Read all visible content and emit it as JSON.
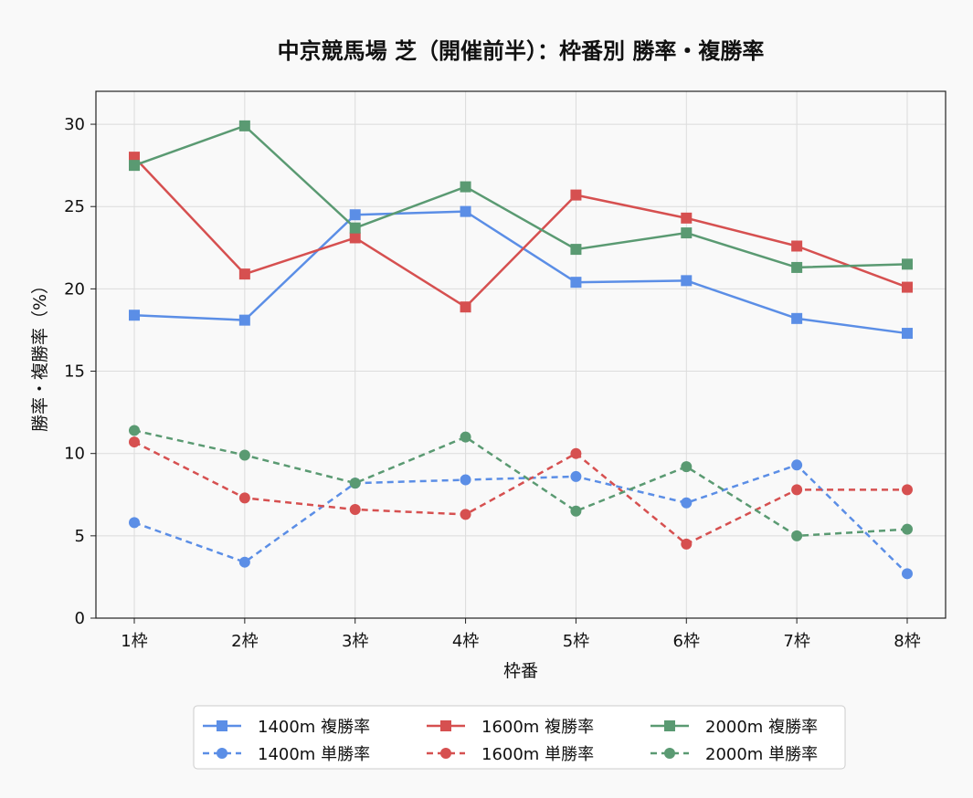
{
  "chart_data": {
    "type": "line",
    "title": "中京競馬場 芝（開催前半）：枠番別 勝率・複勝率",
    "xlabel": "枠番",
    "ylabel": "勝率・複勝率（%）",
    "categories": [
      "1枠",
      "2枠",
      "3枠",
      "4枠",
      "5枠",
      "6枠",
      "7枠",
      "8枠"
    ],
    "ylim": [
      0,
      32
    ],
    "yticks": [
      0,
      5,
      10,
      15,
      20,
      25,
      30
    ],
    "grid": true,
    "legend_position": "bottom-center",
    "series": [
      {
        "name": "1400m 複勝率",
        "color": "#5b8ee6",
        "style": "solid",
        "marker": "square",
        "values": [
          18.4,
          18.1,
          24.5,
          24.7,
          20.4,
          20.5,
          18.2,
          17.3
        ]
      },
      {
        "name": "1400m 単勝率",
        "color": "#5b8ee6",
        "style": "dashed",
        "marker": "circle",
        "values": [
          5.8,
          3.4,
          8.2,
          8.4,
          8.6,
          7.0,
          9.3,
          2.7
        ]
      },
      {
        "name": "1600m 複勝率",
        "color": "#d65050",
        "style": "solid",
        "marker": "square",
        "values": [
          28.0,
          20.9,
          23.1,
          18.9,
          25.7,
          24.3,
          22.6,
          20.1
        ]
      },
      {
        "name": "1600m 単勝率",
        "color": "#d65050",
        "style": "dashed",
        "marker": "circle",
        "values": [
          10.7,
          7.3,
          6.6,
          6.3,
          10.0,
          4.5,
          7.8,
          7.8
        ]
      },
      {
        "name": "2000m 複勝率",
        "color": "#5a9a72",
        "style": "solid",
        "marker": "square",
        "values": [
          27.5,
          29.9,
          23.7,
          26.2,
          22.4,
          23.4,
          21.3,
          21.5
        ]
      },
      {
        "name": "2000m 単勝率",
        "color": "#5a9a72",
        "style": "dashed",
        "marker": "circle",
        "values": [
          11.4,
          9.9,
          8.2,
          11.0,
          6.5,
          9.2,
          5.0,
          5.4
        ]
      }
    ]
  }
}
